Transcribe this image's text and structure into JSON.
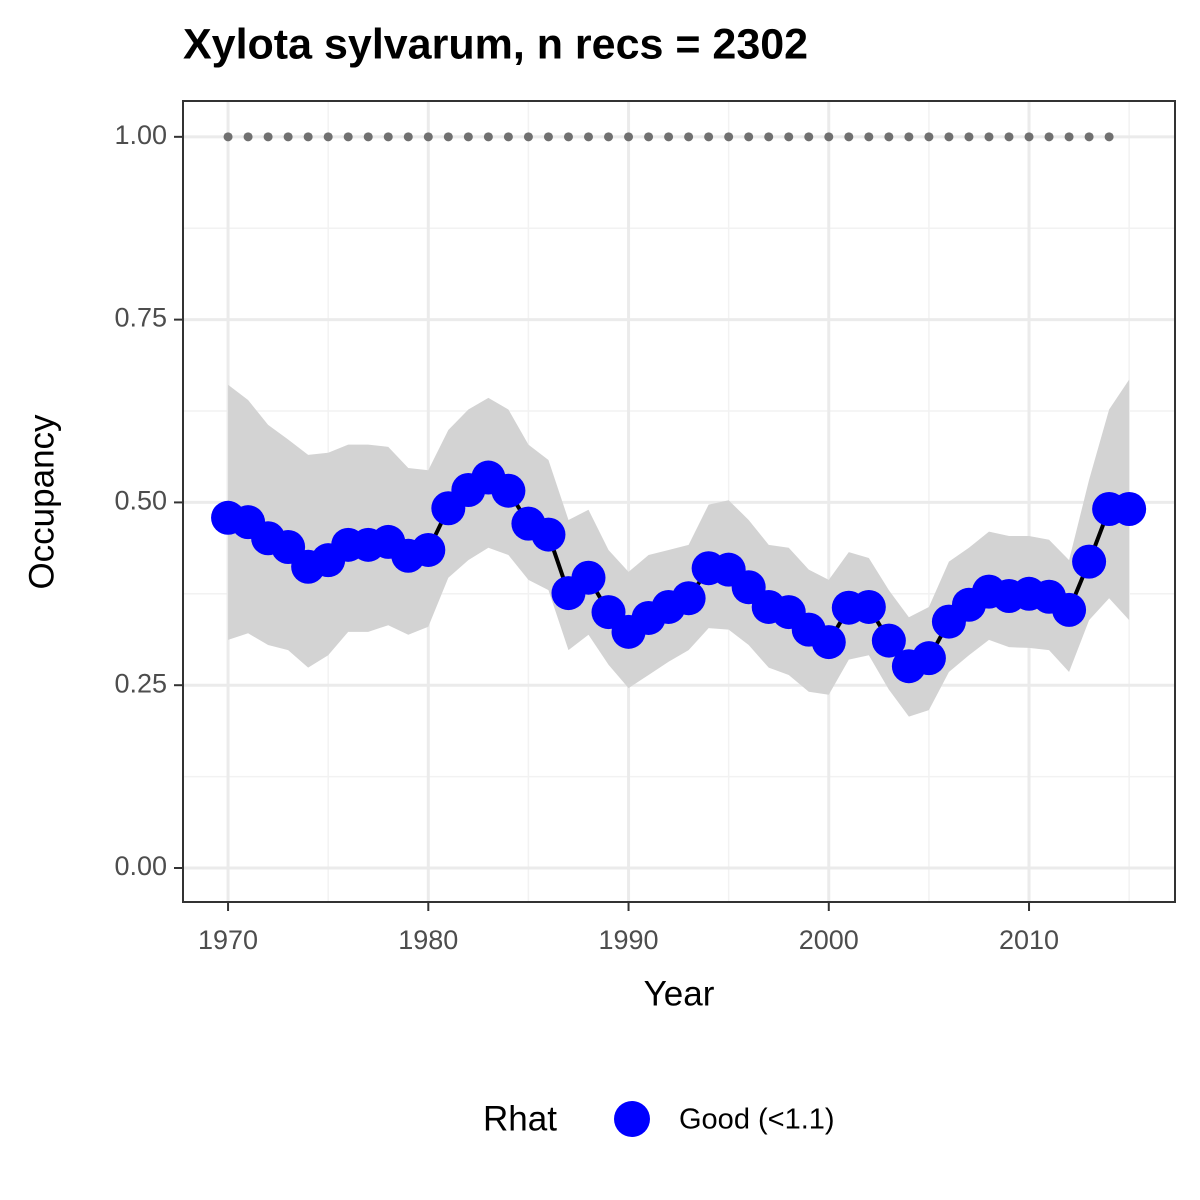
{
  "chart_data": {
    "type": "line",
    "title": "Xylota sylvarum, n recs = 2302",
    "x_label": "Year",
    "y_label": "Occupancy",
    "x": [
      1970,
      1971,
      1972,
      1973,
      1974,
      1975,
      1976,
      1977,
      1978,
      1979,
      1980,
      1981,
      1982,
      1983,
      1984,
      1985,
      1986,
      1987,
      1988,
      1989,
      1990,
      1991,
      1992,
      1993,
      1994,
      1995,
      1996,
      1997,
      1998,
      1999,
      2000,
      2001,
      2002,
      2003,
      2004,
      2005,
      2006,
      2007,
      2008,
      2009,
      2010,
      2011,
      2012,
      2013,
      2014,
      2015
    ],
    "series": [
      {
        "name": "Good (<1.1)",
        "color": "#0000ff",
        "line_color": "#000000",
        "ribbon_color": "#d3d3d3",
        "values": [
          0.479,
          0.473,
          0.451,
          0.439,
          0.412,
          0.421,
          0.442,
          0.442,
          0.446,
          0.427,
          0.435,
          0.492,
          0.517,
          0.534,
          0.516,
          0.471,
          0.456,
          0.376,
          0.397,
          0.35,
          0.323,
          0.342,
          0.357,
          0.369,
          0.41,
          0.408,
          0.384,
          0.357,
          0.35,
          0.326,
          0.309,
          0.356,
          0.357,
          0.311,
          0.276,
          0.287,
          0.337,
          0.36,
          0.378,
          0.372,
          0.375,
          0.371,
          0.353,
          0.419,
          0.491,
          0.491
        ],
        "upper": [
          0.661,
          0.64,
          0.606,
          0.586,
          0.565,
          0.568,
          0.579,
          0.579,
          0.576,
          0.547,
          0.544,
          0.599,
          0.627,
          0.643,
          0.627,
          0.579,
          0.558,
          0.476,
          0.49,
          0.435,
          0.405,
          0.428,
          0.435,
          0.442,
          0.497,
          0.503,
          0.476,
          0.442,
          0.438,
          0.408,
          0.394,
          0.432,
          0.424,
          0.38,
          0.343,
          0.357,
          0.419,
          0.438,
          0.46,
          0.454,
          0.454,
          0.449,
          0.421,
          0.531,
          0.627,
          0.668
        ],
        "lower": [
          0.312,
          0.321,
          0.305,
          0.298,
          0.274,
          0.291,
          0.323,
          0.323,
          0.332,
          0.319,
          0.33,
          0.397,
          0.421,
          0.438,
          0.428,
          0.394,
          0.38,
          0.298,
          0.319,
          0.278,
          0.246,
          0.264,
          0.282,
          0.298,
          0.328,
          0.326,
          0.305,
          0.274,
          0.264,
          0.241,
          0.237,
          0.285,
          0.291,
          0.244,
          0.207,
          0.216,
          0.268,
          0.291,
          0.312,
          0.302,
          0.301,
          0.298,
          0.268,
          0.339,
          0.369,
          0.339
        ]
      }
    ],
    "dotted": {
      "color": "#707070",
      "values": [
        1,
        1,
        1,
        1,
        1,
        1,
        1,
        1,
        1,
        1,
        1,
        1,
        1,
        1,
        1,
        1,
        1,
        1,
        1,
        1,
        1,
        1,
        1,
        1,
        1,
        1,
        1,
        1,
        1,
        1,
        1,
        1,
        1,
        1,
        1,
        1,
        1,
        1,
        1,
        1,
        1,
        1,
        1,
        1,
        1,
        null
      ]
    },
    "xlim": [
      1967.75,
      2017.29
    ],
    "ylim": [
      -0.0465,
      1.049
    ],
    "xticks": [
      1970,
      1980,
      1990,
      2000,
      2010
    ],
    "x_minor_ticks": [
      1975,
      1985,
      1995,
      2005,
      2015
    ],
    "yticks": [
      {
        "value": 0,
        "label": "0.00"
      },
      {
        "value": 0.25,
        "label": "0.25"
      },
      {
        "value": 0.5,
        "label": "0.50"
      },
      {
        "value": 0.75,
        "label": "0.75"
      },
      {
        "value": 1,
        "label": "1.00"
      }
    ],
    "y_minor_ticks": [
      0.125,
      0.375,
      0.625,
      0.875
    ],
    "grid": true,
    "legend_title": "Rhat",
    "legend_position": "bottom"
  }
}
